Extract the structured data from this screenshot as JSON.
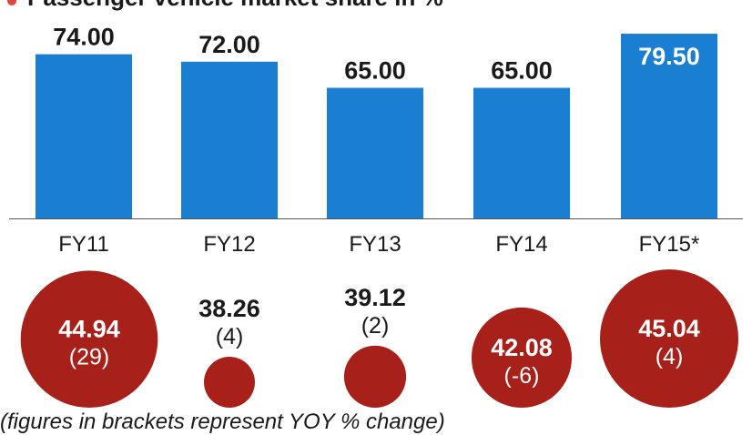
{
  "title": "Passenger vehicle market share in %",
  "footnote": "(figures in brackets represent YOY % change)",
  "colors": {
    "bar": "#1a7fd0",
    "bar_label_highlight": "#ffffff",
    "bar_label": "#1a1a1a",
    "bubble": "#a8201a",
    "bubble_text": "#ffffff",
    "baseline": "#555555"
  },
  "chart_data": [
    {
      "type": "bar",
      "categories": [
        "FY11",
        "FY12",
        "FY13",
        "FY14",
        "FY15*"
      ],
      "values": [
        74.0,
        72.0,
        65.0,
        65.0,
        79.5
      ],
      "value_labels": [
        "74.00",
        "72.00",
        "65.00",
        "65.00",
        "79.50"
      ],
      "title": "Passenger vehicle market share in %",
      "xlabel": "",
      "ylabel": "",
      "ylim": [
        30,
        80
      ],
      "grid": false
    },
    {
      "type": "scatter",
      "categories": [
        "FY11",
        "FY12",
        "FY13",
        "FY14",
        "FY15*"
      ],
      "values": [
        44.94,
        38.26,
        39.12,
        42.08,
        45.04
      ],
      "value_labels": [
        "44.94",
        "38.26",
        "39.12",
        "42.08",
        "45.04"
      ],
      "yoy_change": [
        29,
        4,
        2,
        -6,
        4
      ],
      "yoy_labels": [
        "(29)",
        "(4)",
        "(2)",
        "(-6)",
        "(4)"
      ],
      "bubble_size_by": "value",
      "label_position": [
        "inside",
        "above",
        "above",
        "inside",
        "inside"
      ]
    }
  ]
}
